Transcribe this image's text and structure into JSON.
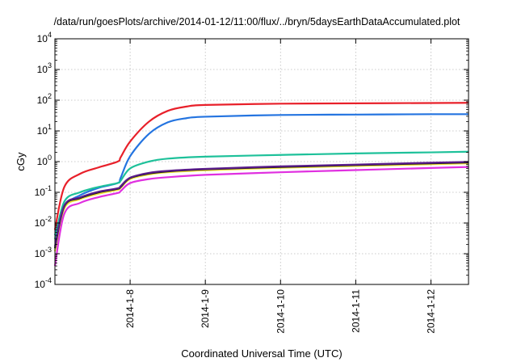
{
  "chart_data": {
    "type": "line",
    "title": "/data/run/goesPlots/archive/2014-01-12/11:00/flux/../bryn/5daysEarthDataAccumulated.plot",
    "xlabel": "Coordinated Universal Time (UTC)",
    "ylabel": "cGy",
    "y_scale": "log",
    "ylim": [
      0.0001,
      10000
    ],
    "xlim": [
      "2014-01-07 00:00",
      "2014-01-12 12:00"
    ],
    "x_ticks": [
      "2014-1-8",
      "2014-1-9",
      "2014-1-10",
      "2014-1-11",
      "2014-1-12"
    ],
    "y_ticks": [
      {
        "value": 0.0001,
        "base": "10",
        "exp": "-4"
      },
      {
        "value": 0.001,
        "base": "10",
        "exp": "-3"
      },
      {
        "value": 0.01,
        "base": "10",
        "exp": "-2"
      },
      {
        "value": 0.1,
        "base": "10",
        "exp": "-1"
      },
      {
        "value": 1,
        "base": "10",
        "exp": "0"
      },
      {
        "value": 10,
        "base": "10",
        "exp": "1"
      },
      {
        "value": 100,
        "base": "10",
        "exp": "2"
      },
      {
        "value": 1000,
        "base": "10",
        "exp": "3"
      },
      {
        "value": 10000,
        "base": "10",
        "exp": "4"
      }
    ],
    "grid": true,
    "legend": "none",
    "series": [
      {
        "color": "#e8202a",
        "points": [
          [
            "2014-01-07 00:00",
            0.006
          ],
          [
            "2014-01-07 03:00",
            0.15
          ],
          [
            "2014-01-07 08:00",
            0.4
          ],
          [
            "2014-01-07 14:00",
            0.65
          ],
          [
            "2014-01-07 20:00",
            1.0
          ],
          [
            "2014-01-07 21:00",
            1.4
          ],
          [
            "2014-01-08 00:00",
            4.5
          ],
          [
            "2014-01-08 06:00",
            20
          ],
          [
            "2014-01-08 12:00",
            45
          ],
          [
            "2014-01-08 18:00",
            62
          ],
          [
            "2014-01-09 00:00",
            70
          ],
          [
            "2014-01-10 00:00",
            77
          ],
          [
            "2014-01-11 00:00",
            79
          ],
          [
            "2014-01-12 00:00",
            81
          ],
          [
            "2014-01-12 12:00",
            82
          ]
        ]
      },
      {
        "color": "#2474e0",
        "points": [
          [
            "2014-01-07 00:00",
            0.004
          ],
          [
            "2014-01-07 03:00",
            0.035
          ],
          [
            "2014-01-07 08:00",
            0.08
          ],
          [
            "2014-01-07 14:00",
            0.14
          ],
          [
            "2014-01-07 20:00",
            0.2
          ],
          [
            "2014-01-07 21:00",
            0.3
          ],
          [
            "2014-01-08 00:00",
            1.5
          ],
          [
            "2014-01-08 06:00",
            8
          ],
          [
            "2014-01-08 12:00",
            19
          ],
          [
            "2014-01-08 18:00",
            26
          ],
          [
            "2014-01-09 00:00",
            29
          ],
          [
            "2014-01-10 00:00",
            33
          ],
          [
            "2014-01-11 00:00",
            34
          ],
          [
            "2014-01-12 00:00",
            35
          ],
          [
            "2014-01-12 12:00",
            35
          ]
        ]
      },
      {
        "color": "#1ec19a",
        "points": [
          [
            "2014-01-07 00:00",
            0.003
          ],
          [
            "2014-01-07 03:00",
            0.05
          ],
          [
            "2014-01-07 08:00",
            0.1
          ],
          [
            "2014-01-07 14:00",
            0.15
          ],
          [
            "2014-01-07 20:00",
            0.2
          ],
          [
            "2014-01-07 21:00",
            0.24
          ],
          [
            "2014-01-08 00:00",
            0.6
          ],
          [
            "2014-01-08 06:00",
            1.0
          ],
          [
            "2014-01-08 12:00",
            1.25
          ],
          [
            "2014-01-09 00:00",
            1.45
          ],
          [
            "2014-01-10 00:00",
            1.65
          ],
          [
            "2014-01-11 00:00",
            1.85
          ],
          [
            "2014-01-12 00:00",
            2.0
          ],
          [
            "2014-01-12 12:00",
            2.1
          ]
        ]
      },
      {
        "color": "#f2e23a",
        "points": [
          [
            "2014-01-07 00:00",
            0.0012
          ],
          [
            "2014-01-07 03:00",
            0.03
          ],
          [
            "2014-01-07 08:00",
            0.06
          ],
          [
            "2014-01-07 14:00",
            0.09
          ],
          [
            "2014-01-07 20:00",
            0.12
          ],
          [
            "2014-01-07 21:00",
            0.14
          ],
          [
            "2014-01-08 00:00",
            0.27
          ],
          [
            "2014-01-08 06:00",
            0.38
          ],
          [
            "2014-01-08 12:00",
            0.45
          ],
          [
            "2014-01-09 00:00",
            0.52
          ],
          [
            "2014-01-10 00:00",
            0.63
          ],
          [
            "2014-01-11 00:00",
            0.72
          ],
          [
            "2014-01-12 00:00",
            0.82
          ],
          [
            "2014-01-12 12:00",
            0.88
          ]
        ]
      },
      {
        "color": "#181818",
        "points": [
          [
            "2014-01-07 00:00",
            0.0015
          ],
          [
            "2014-01-07 03:00",
            0.035
          ],
          [
            "2014-01-07 08:00",
            0.065
          ],
          [
            "2014-01-07 14:00",
            0.1
          ],
          [
            "2014-01-07 20:00",
            0.13
          ],
          [
            "2014-01-07 21:00",
            0.15
          ],
          [
            "2014-01-08 00:00",
            0.29
          ],
          [
            "2014-01-08 06:00",
            0.41
          ],
          [
            "2014-01-08 12:00",
            0.48
          ],
          [
            "2014-01-09 00:00",
            0.56
          ],
          [
            "2014-01-10 00:00",
            0.67
          ],
          [
            "2014-01-11 00:00",
            0.77
          ],
          [
            "2014-01-12 00:00",
            0.88
          ],
          [
            "2014-01-12 12:00",
            0.94
          ]
        ]
      },
      {
        "color": "#5a1c8a",
        "points": [
          [
            "2014-01-07 00:00",
            0.0017
          ],
          [
            "2014-01-07 03:00",
            0.037
          ],
          [
            "2014-01-07 08:00",
            0.068
          ],
          [
            "2014-01-07 14:00",
            0.105
          ],
          [
            "2014-01-07 20:00",
            0.135
          ],
          [
            "2014-01-07 21:00",
            0.16
          ],
          [
            "2014-01-08 00:00",
            0.3
          ],
          [
            "2014-01-08 06:00",
            0.43
          ],
          [
            "2014-01-08 12:00",
            0.5
          ],
          [
            "2014-01-09 00:00",
            0.58
          ],
          [
            "2014-01-10 00:00",
            0.7
          ],
          [
            "2014-01-11 00:00",
            0.8
          ],
          [
            "2014-01-12 00:00",
            0.92
          ],
          [
            "2014-01-12 12:00",
            0.98
          ]
        ]
      },
      {
        "color": "#e030e0",
        "points": [
          [
            "2014-01-07 00:00",
            0.0004
          ],
          [
            "2014-01-07 03:00",
            0.02
          ],
          [
            "2014-01-07 08:00",
            0.045
          ],
          [
            "2014-01-07 14:00",
            0.07
          ],
          [
            "2014-01-07 20:00",
            0.095
          ],
          [
            "2014-01-07 21:00",
            0.11
          ],
          [
            "2014-01-08 00:00",
            0.2
          ],
          [
            "2014-01-08 06:00",
            0.27
          ],
          [
            "2014-01-08 12:00",
            0.31
          ],
          [
            "2014-01-09 00:00",
            0.37
          ],
          [
            "2014-01-10 00:00",
            0.45
          ],
          [
            "2014-01-11 00:00",
            0.53
          ],
          [
            "2014-01-12 00:00",
            0.62
          ],
          [
            "2014-01-12 12:00",
            0.67
          ]
        ]
      }
    ]
  }
}
